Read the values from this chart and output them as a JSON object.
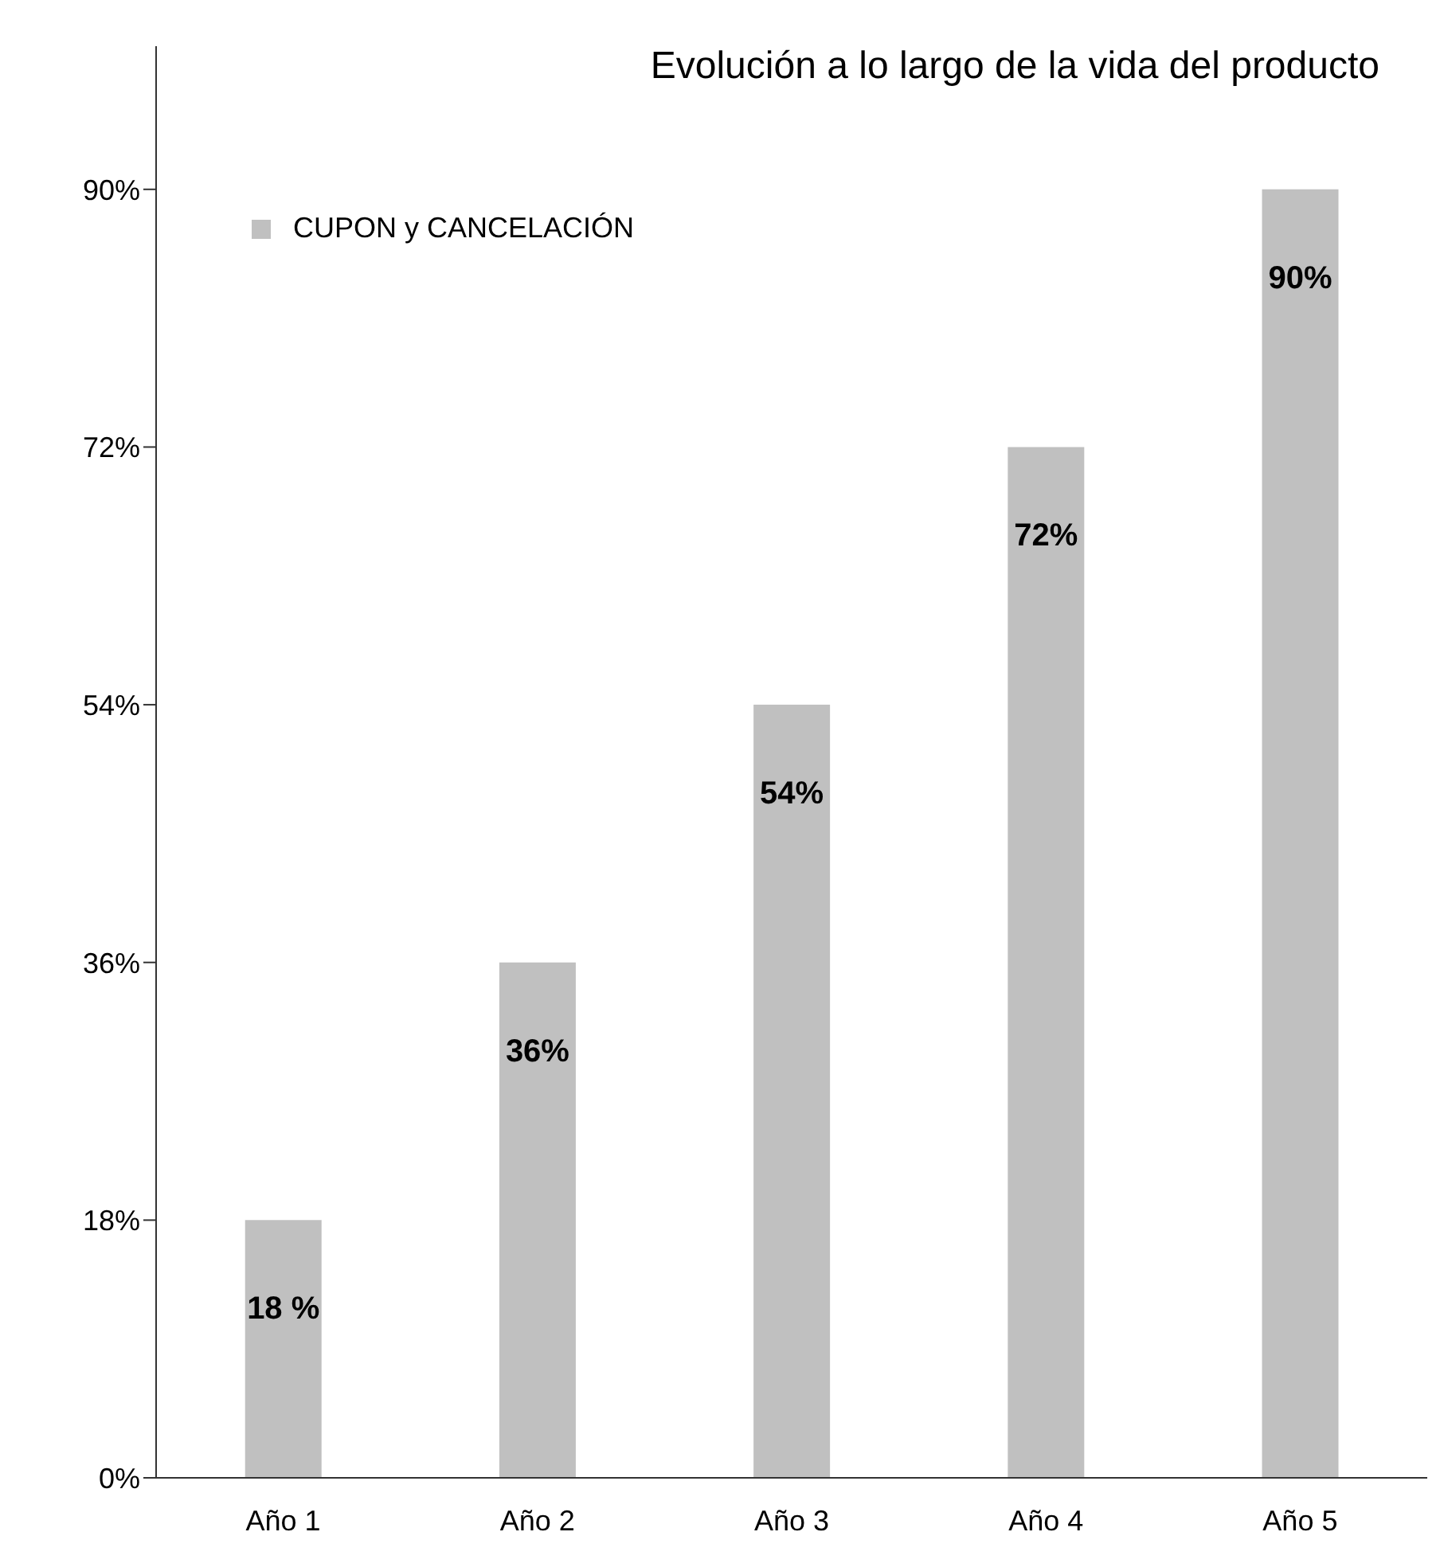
{
  "chart_data": {
    "type": "bar",
    "title": "Evolución a lo largo de la vida del producto",
    "categories": [
      "Año 1",
      "Año 2",
      "Año 3",
      "Año 4",
      "Año 5"
    ],
    "series": [
      {
        "name": "CUPON y CANCELACIÓN",
        "color": "#c0c0c0",
        "values": [
          18,
          36,
          54,
          72,
          90
        ],
        "value_labels": [
          "18 %",
          "36%",
          "54%",
          "72%",
          "90%"
        ]
      }
    ],
    "ylim": [
      0,
      100
    ],
    "yticks": [
      {
        "value": 0,
        "label": "0%"
      },
      {
        "value": 18,
        "label": "18%"
      },
      {
        "value": 36,
        "label": "36%"
      },
      {
        "value": 54,
        "label": "54%"
      },
      {
        "value": 72,
        "label": "72%"
      },
      {
        "value": 90,
        "label": "90%"
      }
    ],
    "grid": false,
    "legend": "top left"
  }
}
